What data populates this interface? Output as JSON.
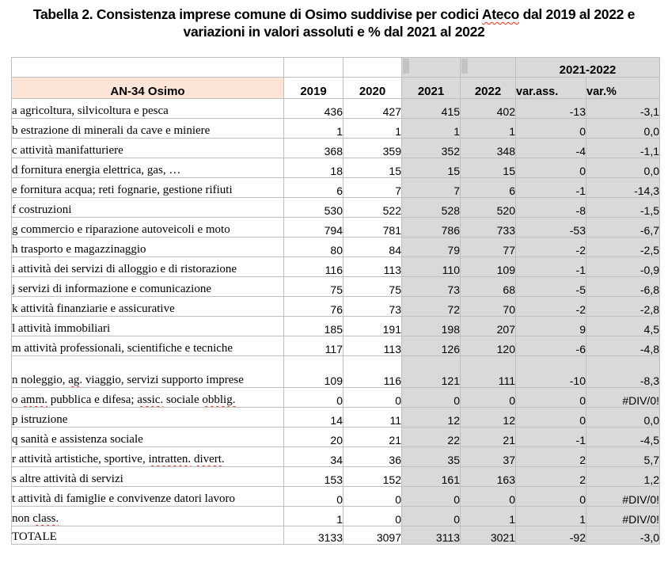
{
  "title": {
    "segments": [
      {
        "t": "Tabella 2. Consistenza imprese comune di Osimo suddivise per codici ",
        "m": false
      },
      {
        "t": "Ateco",
        "m": true
      },
      {
        "t": " dal 2019 al 2022 e variazioni in valori assoluti e % dal 2021 al 2022",
        "m": false
      }
    ]
  },
  "colors": {
    "header_fill": "#fce4d6",
    "column_fill": "#d9d9d9",
    "strip_fill": "#c3c3c3",
    "grid_line": "#bfbfbf",
    "squiggle": "#ff2a1a"
  },
  "table": {
    "span_header": "2021-2022",
    "headers": {
      "label": "AN-34 Osimo",
      "years": [
        "2019",
        "2020",
        "2021",
        "2022"
      ],
      "varass_segments": [
        {
          "t": "var.ass.",
          "m": true
        }
      ],
      "varpct_segments": [
        {
          "t": "var.",
          "m": true
        },
        {
          "t": "%",
          "m": false
        }
      ]
    },
    "rows": [
      {
        "label": [
          {
            "t": "a agricoltura, silvicoltura e pesca",
            "m": false
          }
        ],
        "values": [
          "436",
          "427",
          "415",
          "402",
          "-13",
          "-3,1"
        ],
        "tall": false,
        "total": false
      },
      {
        "label": [
          {
            "t": "b estrazione di minerali da cave e miniere",
            "m": false
          }
        ],
        "values": [
          "1",
          "1",
          "1",
          "1",
          "0",
          "0,0"
        ],
        "tall": false,
        "total": false
      },
      {
        "label": [
          {
            "t": "c attività manifatturiere",
            "m": false
          }
        ],
        "values": [
          "368",
          "359",
          "352",
          "348",
          "-4",
          "-1,1"
        ],
        "tall": false,
        "total": false
      },
      {
        "label": [
          {
            "t": "d fornitura energia elettrica, gas, …",
            "m": false
          }
        ],
        "values": [
          "18",
          "15",
          "15",
          "15",
          "0",
          "0,0"
        ],
        "tall": false,
        "total": false
      },
      {
        "label": [
          {
            "t": "e fornitura acqua; reti fognarie, gestione rifiuti",
            "m": false
          }
        ],
        "values": [
          "6",
          "7",
          "7",
          "6",
          "-1",
          "-14,3"
        ],
        "tall": false,
        "total": false
      },
      {
        "label": [
          {
            "t": "f costruzioni",
            "m": false
          }
        ],
        "values": [
          "530",
          "522",
          "528",
          "520",
          "-8",
          "-1,5"
        ],
        "tall": false,
        "total": false
      },
      {
        "label": [
          {
            "t": "g commercio e riparazione autoveicoli e moto",
            "m": false
          }
        ],
        "values": [
          "794",
          "781",
          "786",
          "733",
          "-53",
          "-6,7"
        ],
        "tall": false,
        "total": false
      },
      {
        "label": [
          {
            "t": "h trasporto e magazzinaggio",
            "m": false
          }
        ],
        "values": [
          "80",
          "84",
          "79",
          "77",
          "-2",
          "-2,5"
        ],
        "tall": false,
        "total": false
      },
      {
        "label": [
          {
            "t": "i attività dei servizi di alloggio e di ristorazione",
            "m": false
          }
        ],
        "values": [
          "116",
          "113",
          "110",
          "109",
          "-1",
          "-0,9"
        ],
        "tall": false,
        "total": false
      },
      {
        "label": [
          {
            "t": "j servizi di informazione e comunicazione",
            "m": false
          }
        ],
        "values": [
          "75",
          "75",
          "73",
          "68",
          "-5",
          "-6,8"
        ],
        "tall": false,
        "total": false
      },
      {
        "label": [
          {
            "t": "k attività finanziarie e assicurative",
            "m": false
          }
        ],
        "values": [
          "76",
          "73",
          "72",
          "70",
          "-2",
          "-2,8"
        ],
        "tall": false,
        "total": false
      },
      {
        "label": [
          {
            "t": "l attività immobiliari",
            "m": false
          }
        ],
        "values": [
          "185",
          "191",
          "198",
          "207",
          "9",
          "4,5"
        ],
        "tall": false,
        "total": false
      },
      {
        "label": [
          {
            "t": "m attività professionali, scientifiche e tecniche",
            "m": false
          }
        ],
        "values": [
          "117",
          "113",
          "126",
          "120",
          "-6",
          "-4,8"
        ],
        "tall": false,
        "total": false
      },
      {
        "label": [
          {
            "t": "n noleggio, ",
            "m": false
          },
          {
            "t": "ag.",
            "m": true
          },
          {
            "t": " viaggio, servizi supporto imprese",
            "m": false
          }
        ],
        "values": [
          "109",
          "116",
          "121",
          "111",
          "-10",
          "-8,3"
        ],
        "tall": true,
        "total": false
      },
      {
        "label": [
          {
            "t": "o ",
            "m": false
          },
          {
            "t": "amm.",
            "m": true
          },
          {
            "t": " pubblica e difesa; ",
            "m": false
          },
          {
            "t": "assic.",
            "m": true
          },
          {
            "t": " sociale ",
            "m": false
          },
          {
            "t": "obblig.",
            "m": true
          }
        ],
        "values": [
          "0",
          "0",
          "0",
          "0",
          "0",
          "#DIV/0!"
        ],
        "tall": false,
        "total": false
      },
      {
        "label": [
          {
            "t": "p istruzione",
            "m": false
          }
        ],
        "values": [
          "14",
          "11",
          "12",
          "12",
          "0",
          "0,0"
        ],
        "tall": false,
        "total": false
      },
      {
        "label": [
          {
            "t": "q sanità e assistenza sociale",
            "m": false
          }
        ],
        "values": [
          "20",
          "21",
          "22",
          "21",
          "-1",
          "-4,5"
        ],
        "tall": false,
        "total": false
      },
      {
        "label": [
          {
            "t": "r attività artistiche, sportive, ",
            "m": false
          },
          {
            "t": "intratten.",
            "m": true
          },
          {
            "t": " ",
            "m": false
          },
          {
            "t": "divert.",
            "m": true
          }
        ],
        "values": [
          "34",
          "36",
          "35",
          "37",
          "2",
          "5,7"
        ],
        "tall": false,
        "total": false
      },
      {
        "label": [
          {
            "t": "s altre attività di servizi",
            "m": false
          }
        ],
        "values": [
          "153",
          "152",
          "161",
          "163",
          "2",
          "1,2"
        ],
        "tall": false,
        "total": false
      },
      {
        "label": [
          {
            "t": "t attività di famiglie e convivenze datori lavoro",
            "m": false
          }
        ],
        "values": [
          "0",
          "0",
          "0",
          "0",
          "0",
          "#DIV/0!"
        ],
        "tall": false,
        "total": false
      },
      {
        "label": [
          {
            "t": "non ",
            "m": false
          },
          {
            "t": "class.",
            "m": true
          }
        ],
        "values": [
          "1",
          "0",
          "0",
          "1",
          "1",
          "#DIV/0!"
        ],
        "tall": false,
        "total": false
      },
      {
        "label": [
          {
            "t": "TOTALE",
            "m": false
          }
        ],
        "values": [
          "3133",
          "3097",
          "3113",
          "3021",
          "-92",
          "-3,0"
        ],
        "tall": false,
        "total": true
      }
    ]
  }
}
